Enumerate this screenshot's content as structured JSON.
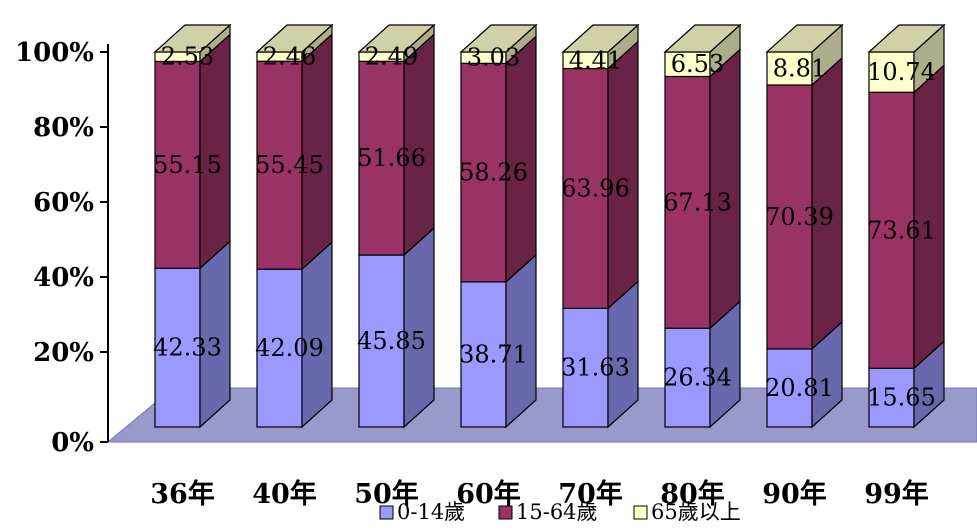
{
  "chart_data": {
    "type": "bar",
    "stacked": true,
    "three_d": true,
    "categories": [
      "36年",
      "40年",
      "50年",
      "60年",
      "70年",
      "80年",
      "90年",
      "99年"
    ],
    "series": [
      {
        "name": "0-14歲",
        "values": [
          42.33,
          42.09,
          45.85,
          38.71,
          31.63,
          26.34,
          20.81,
          15.65
        ],
        "color": "#9999ff"
      },
      {
        "name": "15-64歲",
        "values": [
          55.15,
          55.45,
          51.66,
          58.26,
          63.96,
          67.13,
          70.39,
          73.61
        ],
        "color": "#993366"
      },
      {
        "name": "65歲以上",
        "values": [
          2.53,
          2.46,
          2.49,
          3.03,
          4.41,
          6.53,
          8.81,
          10.74
        ],
        "color": "#ffffcc"
      }
    ],
    "y_ticks": [
      "0%",
      "20%",
      "40%",
      "60%",
      "80%",
      "100%"
    ],
    "ylim": [
      0,
      100
    ],
    "floor_color": "#9999cc",
    "legend_position": "bottom",
    "grid": false
  }
}
